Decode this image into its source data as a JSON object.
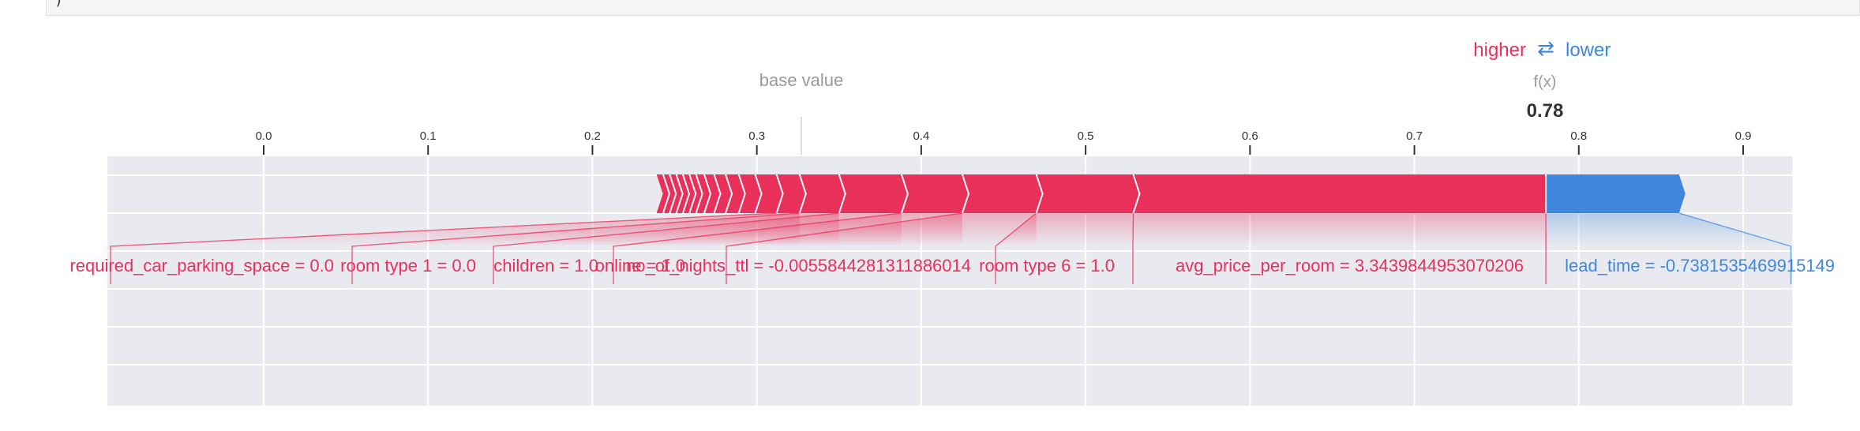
{
  "code_cell": {
    "closing_paren": ")"
  },
  "colors": {
    "positive": "#e9305a",
    "negative": "#3e87dd",
    "background": "#e9eaf0",
    "gray_text": "#999999"
  },
  "chart_data": {
    "type": "force",
    "legend": {
      "higher": "higher",
      "arrow": "⇄",
      "lower": "lower"
    },
    "base_value_label": "base value",
    "fx_label": "f(x)",
    "fx_value_label": "0.78",
    "base_value": 0.327,
    "fx": 0.78,
    "xlim": [
      -0.095,
      0.93
    ],
    "ticks": [
      0.0,
      0.1,
      0.2,
      0.3,
      0.4,
      0.5,
      0.6,
      0.7,
      0.8,
      0.9
    ],
    "tick_labels": [
      "0.0",
      "0.1",
      "0.2",
      "0.3",
      "0.4",
      "0.5",
      "0.6",
      "0.7",
      "0.8",
      "0.9"
    ],
    "positive_features": [
      {
        "label": "avg_price_per_room = 3.3439844953070206",
        "start": 0.78,
        "end": 0.529
      },
      {
        "label": "room type 6 = 1.0",
        "start": 0.529,
        "end": 0.47
      },
      {
        "label": "no_of_nights_ttl = -0.0055844281311886014",
        "start": 0.47,
        "end": 0.425
      },
      {
        "label": "online = 1.0",
        "start": 0.425,
        "end": 0.388
      },
      {
        "label": "children = 1.0",
        "start": 0.388,
        "end": 0.35
      },
      {
        "label": "room type 1 = 0.0",
        "start": 0.35,
        "end": 0.326
      },
      {
        "label": "required_car_parking_space = 0.0",
        "start": 0.326,
        "end": 0.312
      },
      {
        "start": 0.312,
        "end": 0.299
      },
      {
        "start": 0.299,
        "end": 0.289
      },
      {
        "start": 0.289,
        "end": 0.281
      },
      {
        "start": 0.281,
        "end": 0.274
      },
      {
        "start": 0.274,
        "end": 0.268
      },
      {
        "start": 0.268,
        "end": 0.263
      },
      {
        "start": 0.263,
        "end": 0.259
      },
      {
        "start": 0.259,
        "end": 0.255
      },
      {
        "start": 0.255,
        "end": 0.251
      },
      {
        "start": 0.251,
        "end": 0.247
      },
      {
        "start": 0.247,
        "end": 0.243
      },
      {
        "start": 0.243,
        "end": 0.239
      }
    ],
    "negative_features": [
      {
        "label": "lead_time = -0.7381535469915149",
        "start": 0.78,
        "end": 0.861
      }
    ]
  }
}
